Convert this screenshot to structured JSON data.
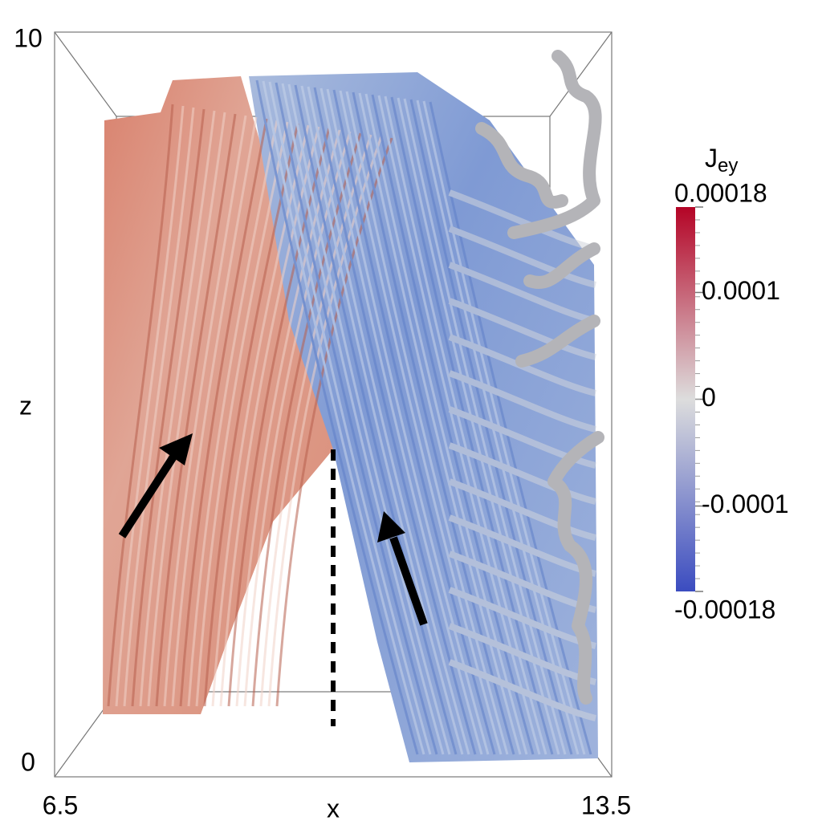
{
  "axes": {
    "x_label": "x",
    "z_label": "z",
    "x_ticks": [
      6.5,
      13.5
    ],
    "z_ticks": [
      0,
      10
    ]
  },
  "colorbar": {
    "title": "J",
    "title_subscript": "ey",
    "range": [
      -0.00018,
      0.00018
    ],
    "ticks": [
      0.00018,
      0.0001,
      0,
      -0.0001,
      -0.00018
    ],
    "colors": [
      "#3b4cc0",
      "#dddddd",
      "#b40426"
    ]
  }
}
